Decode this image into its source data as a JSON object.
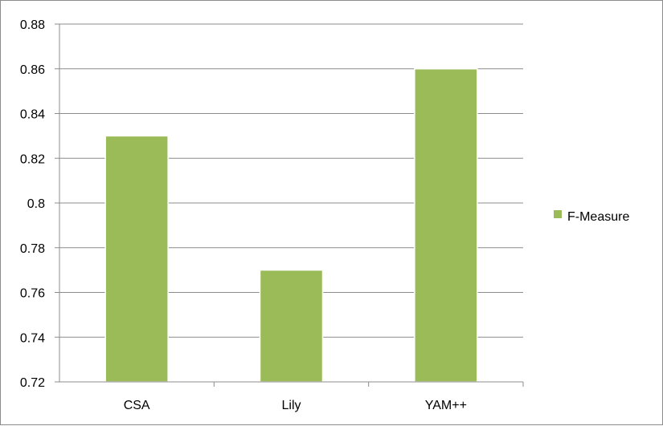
{
  "chart_data": {
    "type": "bar",
    "categories": [
      "CSA",
      "Lily",
      "YAM++"
    ],
    "series": [
      {
        "name": "F-Measure",
        "values": [
          0.83,
          0.77,
          0.86
        ],
        "color": "#9bbb59"
      }
    ],
    "yticks": [
      "0.72",
      "0.74",
      "0.76",
      "0.78",
      "0.8",
      "0.82",
      "0.84",
      "0.86",
      "0.88"
    ],
    "ylim": [
      0.72,
      0.88
    ],
    "grid": true,
    "legend_position": "right"
  }
}
